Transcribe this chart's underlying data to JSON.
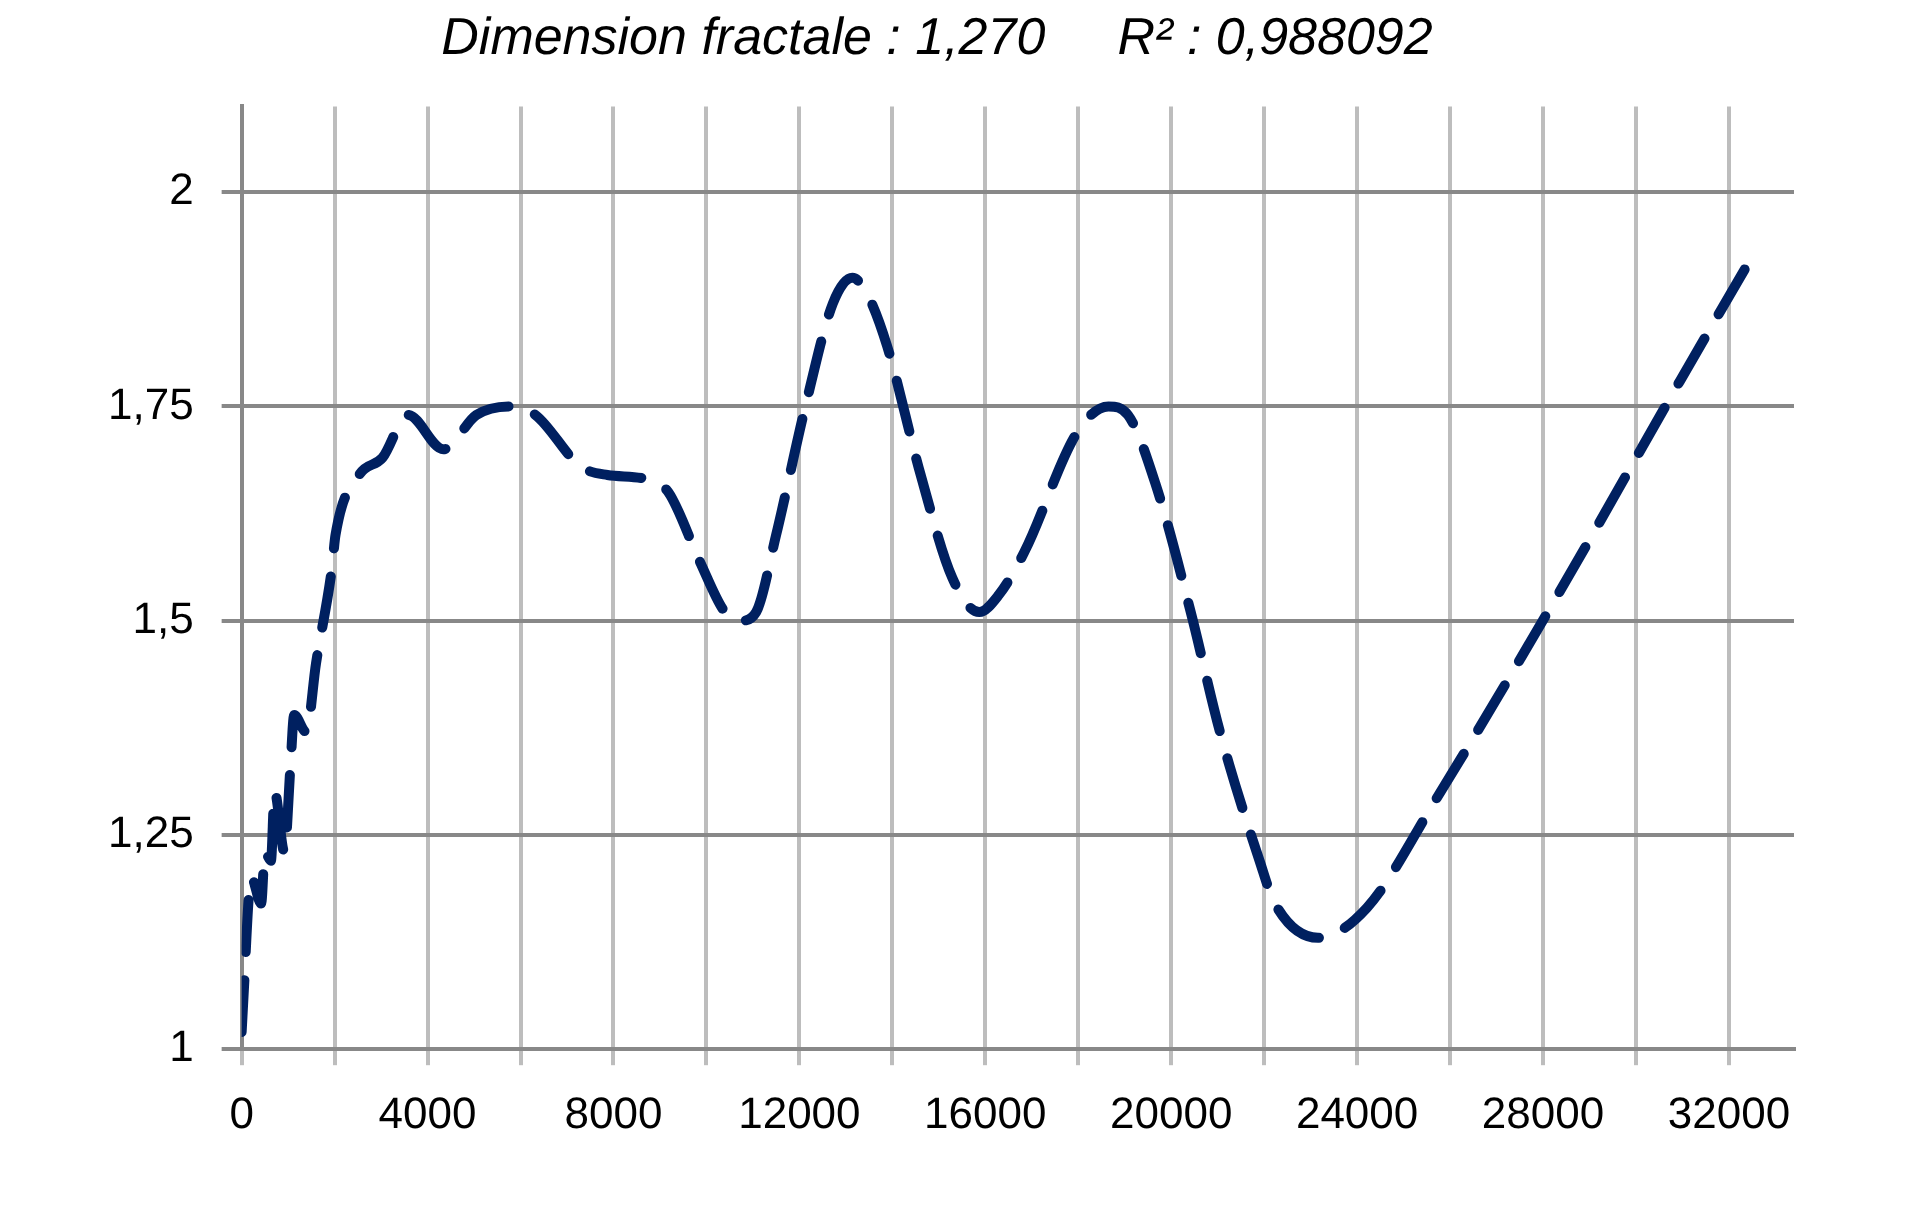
{
  "chart_data": {
    "type": "line",
    "title": "Dimension fractale : 1,270     R² : 0,988092",
    "x": [
      0,
      210,
      420,
      500,
      630,
      710,
      920,
      1050,
      1130,
      1390,
      1600,
      1940,
      2020,
      2530,
      3030,
      3580,
      4340,
      5050,
      5770,
      6320,
      7290,
      7870,
      8720,
      9180,
      9850,
      10400,
      10740,
      11070,
      11500,
      12130,
      12720,
      13140,
      13470,
      13890,
      14610,
      15290,
      15870,
      16290,
      16840,
      17980,
      18650,
      19070,
      19660,
      20420,
      21050,
      21900,
      22230,
      23160,
      24210,
      25680,
      28210,
      30950,
      32340
    ],
    "series": [
      {
        "color": "#002060",
        "values": [
          1.02,
          1.2,
          1.17,
          1.23,
          1.22,
          1.3,
          1.23,
          1.33,
          1.39,
          1.37,
          1.45,
          1.56,
          1.6,
          1.67,
          1.69,
          1.74,
          1.7,
          1.74,
          1.75,
          1.74,
          1.68,
          1.67,
          1.665,
          1.65,
          1.57,
          1.51,
          1.5,
          1.51,
          1.6,
          1.75,
          1.87,
          1.9,
          1.88,
          1.82,
          1.67,
          1.55,
          1.51,
          1.53,
          1.58,
          1.72,
          1.75,
          1.74,
          1.66,
          1.51,
          1.37,
          1.22,
          1.17,
          1.13,
          1.165,
          1.29,
          1.52,
          1.78,
          1.91
        ]
      }
    ],
    "xlim": [
      0,
      33400
    ],
    "xticks": [
      0,
      {
        "value": 2000,
        "label": null
      },
      4000,
      {
        "value": 6000,
        "label": null
      },
      8000,
      {
        "value": 10000,
        "label": null
      },
      12000,
      {
        "value": 14000,
        "label": null
      },
      16000,
      {
        "value": 18000,
        "label": null
      },
      20000,
      {
        "value": 22000,
        "label": null
      },
      24000,
      {
        "value": 26000,
        "label": null
      },
      28000,
      {
        "value": 30000,
        "label": null
      },
      32000
    ],
    "ylim": [
      1,
      2.1
    ],
    "yticks": [
      1,
      {
        "value": 1.25,
        "label": "1,25"
      },
      {
        "value": 1.5,
        "label": "1,5"
      },
      {
        "value": 1.75,
        "label": "1,75"
      },
      2
    ],
    "grid": true,
    "legend": false,
    "line_style": "dashed",
    "marker": "none"
  }
}
